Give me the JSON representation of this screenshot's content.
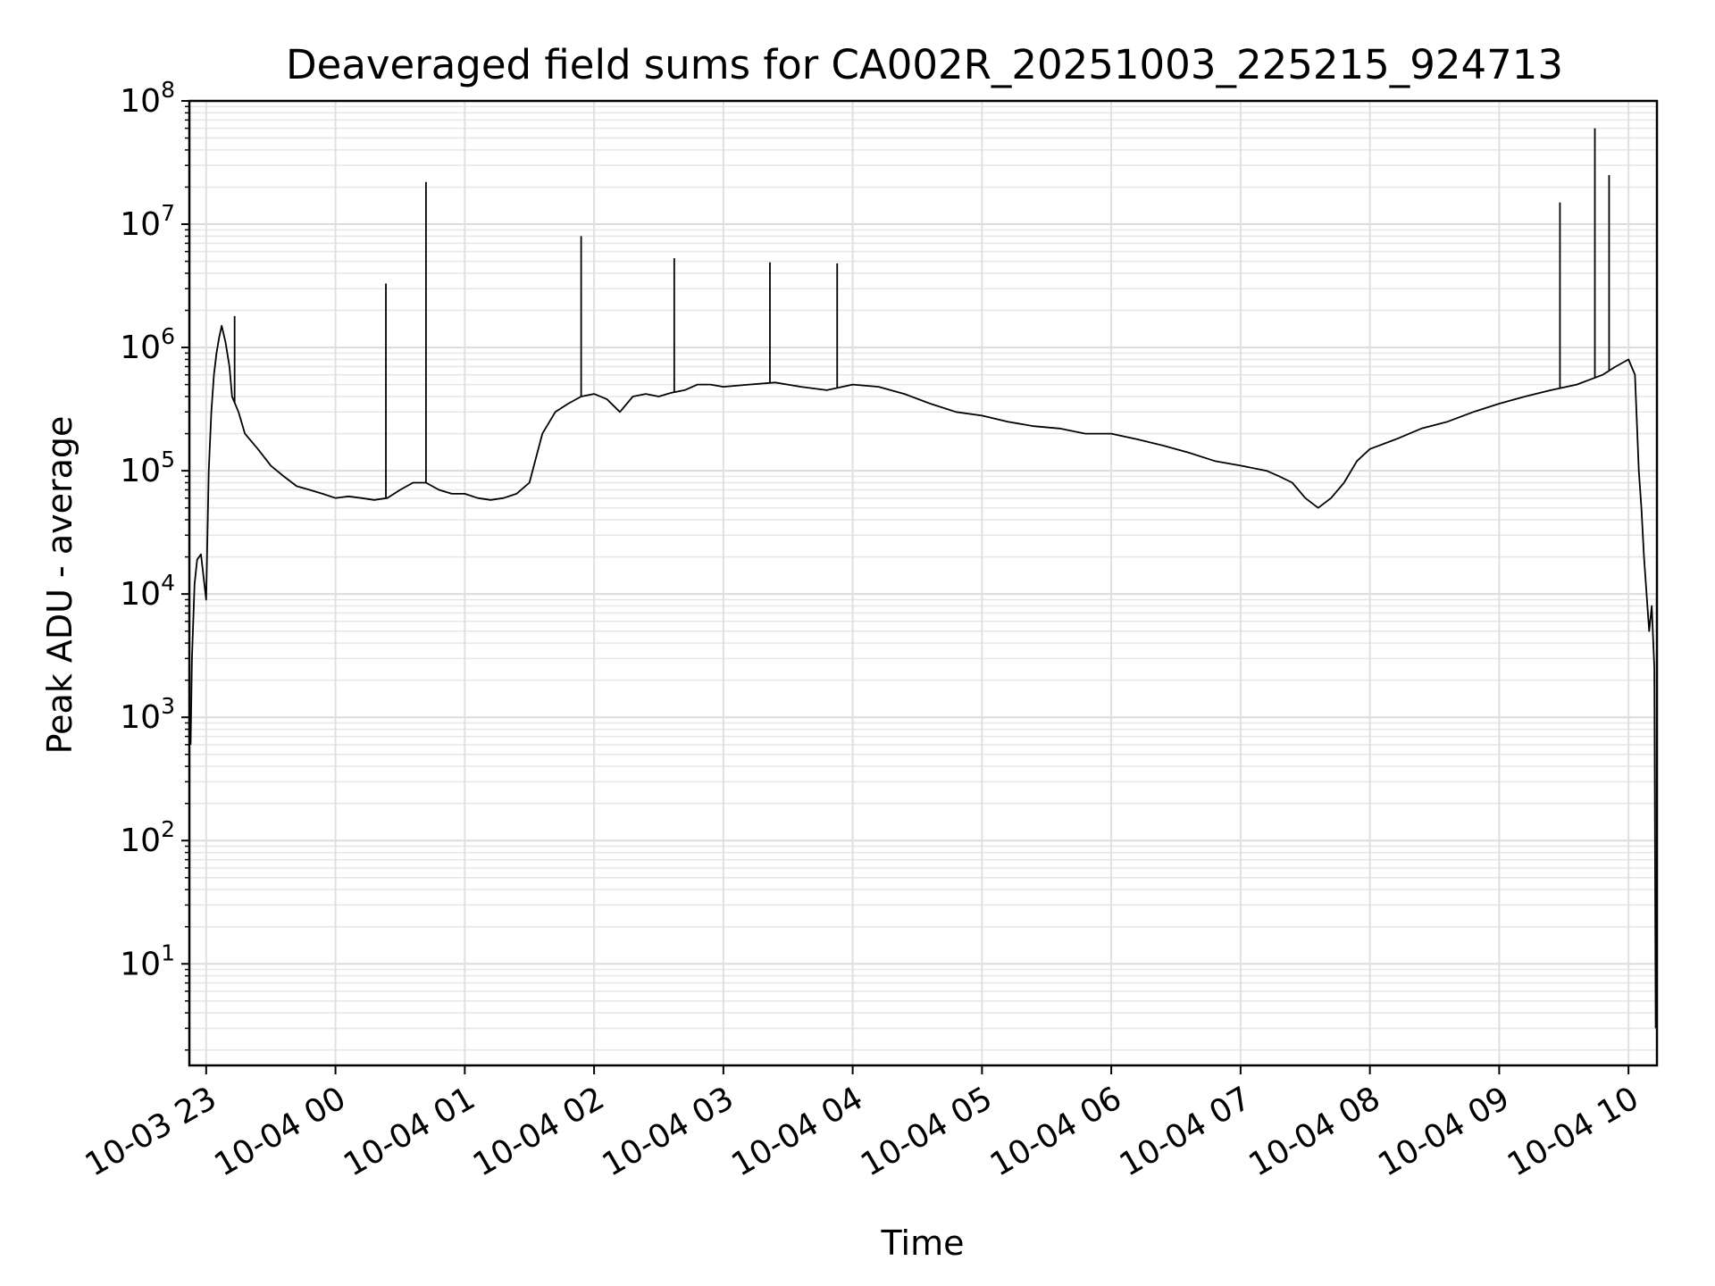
{
  "chart_data": {
    "type": "line",
    "title": "Deaveraged field sums for CA002R_20251003_225215_924713",
    "xlabel": "Time",
    "ylabel": "Peak ADU - average",
    "yscale": "log",
    "ylim": [
      1.5,
      100000000
    ],
    "xlim_hours": [
      -0.13,
      11.22
    ],
    "grid": true,
    "line_color": "#000000",
    "y_ticks": [
      {
        "value": 10,
        "base": "10",
        "exp": "1"
      },
      {
        "value": 100,
        "base": "10",
        "exp": "2"
      },
      {
        "value": 1000,
        "base": "10",
        "exp": "3"
      },
      {
        "value": 10000,
        "base": "10",
        "exp": "4"
      },
      {
        "value": 100000,
        "base": "10",
        "exp": "5"
      },
      {
        "value": 1000000,
        "base": "10",
        "exp": "6"
      },
      {
        "value": 10000000,
        "base": "10",
        "exp": "7"
      },
      {
        "value": 100000000,
        "base": "10",
        "exp": "8"
      }
    ],
    "x_ticks": [
      {
        "hour": 0,
        "label": "10-03 23"
      },
      {
        "hour": 1,
        "label": "10-04 00"
      },
      {
        "hour": 2,
        "label": "10-04 01"
      },
      {
        "hour": 3,
        "label": "10-04 02"
      },
      {
        "hour": 4,
        "label": "10-04 03"
      },
      {
        "hour": 5,
        "label": "10-04 04"
      },
      {
        "hour": 6,
        "label": "10-04 05"
      },
      {
        "hour": 7,
        "label": "10-04 06"
      },
      {
        "hour": 8,
        "label": "10-04 07"
      },
      {
        "hour": 9,
        "label": "10-04 08"
      },
      {
        "hour": 10,
        "label": "10-04 09"
      },
      {
        "hour": 11,
        "label": "10-04 10"
      }
    ],
    "series": [
      {
        "name": "Deaveraged field sum",
        "x": [
          -0.12,
          -0.11,
          -0.09,
          -0.07,
          -0.04,
          0.0,
          0.02,
          0.04,
          0.06,
          0.08,
          0.1,
          0.12,
          0.15,
          0.18,
          0.2,
          0.25,
          0.3,
          0.4,
          0.5,
          0.6,
          0.7,
          0.8,
          0.9,
          1.0,
          1.1,
          1.2,
          1.3,
          1.4,
          1.5,
          1.6,
          1.7,
          1.8,
          1.9,
          2.0,
          2.1,
          2.2,
          2.3,
          2.4,
          2.5,
          2.6,
          2.7,
          2.8,
          2.9,
          3.0,
          3.1,
          3.2,
          3.3,
          3.4,
          3.5,
          3.6,
          3.7,
          3.8,
          3.9,
          4.0,
          4.2,
          4.4,
          4.6,
          4.8,
          5.0,
          5.2,
          5.4,
          5.6,
          5.8,
          6.0,
          6.2,
          6.4,
          6.6,
          6.8,
          7.0,
          7.2,
          7.4,
          7.6,
          7.8,
          8.0,
          8.2,
          8.3,
          8.4,
          8.5,
          8.6,
          8.7,
          8.8,
          8.9,
          9.0,
          9.2,
          9.4,
          9.6,
          9.8,
          10.0,
          10.2,
          10.4,
          10.6,
          10.8,
          10.9,
          11.0,
          11.05,
          11.08,
          11.1,
          11.12,
          11.14,
          11.16,
          11.18,
          11.2,
          11.21
        ],
        "values": [
          600,
          3000,
          12000,
          19000,
          21000,
          9000,
          100000,
          300000,
          600000,
          900000,
          1200000,
          1500000,
          1100000,
          700000,
          400000,
          300000,
          200000,
          150000,
          110000,
          90000,
          75000,
          70000,
          65000,
          60000,
          62000,
          60000,
          58000,
          60000,
          70000,
          80000,
          80000,
          70000,
          65000,
          65000,
          60000,
          58000,
          60000,
          65000,
          80000,
          200000,
          300000,
          350000,
          400000,
          420000,
          380000,
          300000,
          400000,
          420000,
          400000,
          430000,
          450000,
          500000,
          500000,
          480000,
          500000,
          520000,
          480000,
          450000,
          500000,
          480000,
          420000,
          350000,
          300000,
          280000,
          250000,
          230000,
          220000,
          200000,
          200000,
          180000,
          160000,
          140000,
          120000,
          110000,
          100000,
          90000,
          80000,
          60000,
          50000,
          60000,
          80000,
          120000,
          150000,
          180000,
          220000,
          250000,
          300000,
          350000,
          400000,
          450000,
          500000,
          600000,
          700000,
          800000,
          600000,
          100000,
          50000,
          20000,
          10000,
          5000,
          8000,
          2500,
          3
        ],
        "spikes": [
          {
            "x": 0.22,
            "value": 1800000
          },
          {
            "x": 1.39,
            "value": 3300000
          },
          {
            "x": 1.7,
            "value": 22000000
          },
          {
            "x": 2.9,
            "value": 8000000
          },
          {
            "x": 3.62,
            "value": 5300000
          },
          {
            "x": 4.36,
            "value": 4900000
          },
          {
            "x": 4.88,
            "value": 4800000
          },
          {
            "x": 10.47,
            "value": 15000000
          },
          {
            "x": 10.74,
            "value": 60000000
          },
          {
            "x": 10.85,
            "value": 25000000
          }
        ]
      }
    ]
  }
}
